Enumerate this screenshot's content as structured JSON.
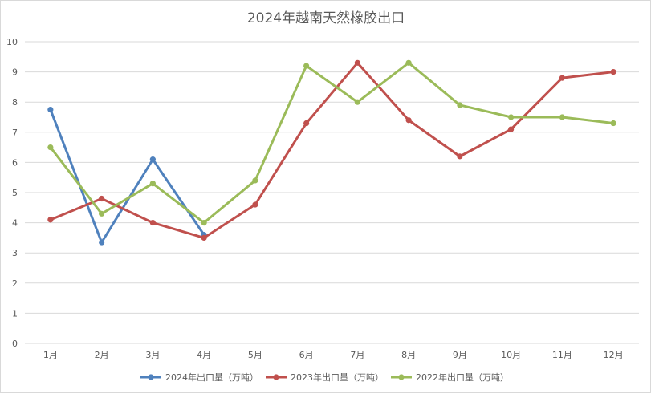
{
  "chart_data": {
    "type": "line",
    "title": "2024年越南天然橡胶出口",
    "xlabel": "",
    "ylabel": "",
    "categories": [
      "1月",
      "2月",
      "3月",
      "4月",
      "5月",
      "6月",
      "7月",
      "8月",
      "9月",
      "10月",
      "11月",
      "12月"
    ],
    "ylim": [
      0,
      10
    ],
    "yticks": [
      0,
      1,
      2,
      3,
      4,
      5,
      6,
      7,
      8,
      9,
      10
    ],
    "grid": true,
    "legend_position": "bottom",
    "series": [
      {
        "name": "2024年出口量（万吨）",
        "color": "#4f81bd",
        "values": [
          7.75,
          3.35,
          6.1,
          3.6,
          null,
          null,
          null,
          null,
          null,
          null,
          null,
          null
        ]
      },
      {
        "name": "2023年出口量（万吨）",
        "color": "#c0504d",
        "values": [
          4.1,
          4.8,
          4.0,
          3.5,
          4.6,
          7.3,
          9.3,
          7.4,
          6.2,
          7.1,
          8.8,
          9.0
        ]
      },
      {
        "name": "2022年出口量（万吨）",
        "color": "#9bbb59",
        "values": [
          6.5,
          4.3,
          5.3,
          4.0,
          5.4,
          9.2,
          8.0,
          9.3,
          7.9,
          7.5,
          7.5,
          7.3
        ]
      }
    ]
  }
}
